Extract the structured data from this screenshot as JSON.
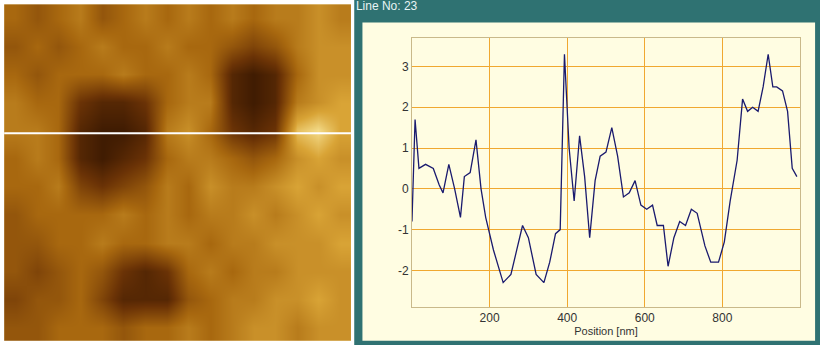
{
  "chart_data": [
    {
      "type": "heatmap",
      "x": [
        31.25,
        93.75,
        156.25,
        218.75,
        281.25,
        343.75,
        406.25,
        468.75,
        531.25,
        593.75,
        656.25,
        718.75,
        781.25,
        843.75,
        906.25,
        968.75
      ],
      "y": [
        2.5,
        7.5,
        12.5,
        17.5,
        22.5,
        27.5,
        32.5,
        37.5,
        42.5,
        47.5,
        52.5,
        57.5
      ],
      "cells": [
        [
          0,
          -0.5,
          0,
          0.5,
          -0.5,
          0,
          0.5,
          0,
          0.5,
          0,
          0.5,
          0,
          0.5,
          0.5,
          1,
          0.5
        ],
        [
          -0.5,
          0,
          -0.5,
          0,
          0.5,
          0,
          0,
          0.5,
          0,
          0,
          -0.5,
          -1,
          -0.5,
          0.5,
          1,
          1
        ],
        [
          0,
          -0.5,
          0,
          0,
          0,
          0.5,
          0,
          0,
          0.5,
          0,
          -2,
          -2.5,
          -2,
          0,
          1,
          1
        ],
        [
          0.5,
          0,
          0,
          -1.5,
          -2,
          -2,
          -1.5,
          0,
          0.5,
          0.5,
          -2,
          -2.5,
          -2,
          0.5,
          1,
          1.5
        ],
        [
          0.5,
          0.5,
          0,
          -2,
          -2.5,
          -2.5,
          -2,
          0.5,
          1,
          0,
          -1.5,
          -2,
          -1.5,
          2,
          2.5,
          1.5
        ],
        [
          0,
          0.5,
          0,
          -2,
          -2.5,
          -2,
          -1.5,
          0,
          0.5,
          0.5,
          0,
          -0.5,
          0,
          1,
          1.5,
          1
        ],
        [
          0,
          0,
          0.5,
          -1,
          -1.5,
          -1,
          -0.5,
          0.5,
          0,
          1,
          0.5,
          0.5,
          1,
          1.5,
          1,
          1.5
        ],
        [
          -0.5,
          0,
          0,
          0,
          0,
          0.5,
          0,
          0.5,
          0,
          0.5,
          0.5,
          1,
          0.5,
          1,
          1.5,
          1
        ],
        [
          -0.5,
          -0.5,
          0,
          0,
          0.5,
          0,
          0,
          0.5,
          0.5,
          0,
          0.5,
          0.5,
          1,
          1,
          1,
          1.5
        ],
        [
          -0.5,
          -1,
          -0.5,
          0,
          -0.5,
          -1.5,
          -2,
          -1.5,
          0,
          0.5,
          0,
          0.5,
          0.5,
          1,
          1,
          1
        ],
        [
          -1,
          -0.5,
          -0.5,
          0,
          -1,
          -2,
          -2,
          -2,
          -0.5,
          0,
          0.5,
          0.5,
          1,
          1,
          1.5,
          1
        ],
        [
          -0.5,
          -0.5,
          0,
          0,
          0,
          -0.5,
          0,
          0,
          0.5,
          0,
          0.5,
          1,
          1,
          0.5,
          1,
          1
        ]
      ],
      "zlim": [
        -3,
        3
      ],
      "xlim": [
        0,
        1000
      ],
      "ylim": [
        60,
        0
      ],
      "scan_line": 23,
      "tick_labels": false
    },
    {
      "type": "line",
      "title": "Line No: 23",
      "x_label": "Position [nm]",
      "x": [
        0,
        8,
        18,
        35,
        55,
        70,
        80,
        95,
        110,
        125,
        135,
        150,
        165,
        178,
        190,
        210,
        235,
        255,
        270,
        285,
        300,
        320,
        340,
        355,
        370,
        382,
        393,
        405,
        418,
        432,
        445,
        458,
        472,
        485,
        500,
        515,
        530,
        545,
        560,
        575,
        590,
        605,
        620,
        632,
        648,
        660,
        675,
        690,
        705,
        720,
        735,
        755,
        770,
        790,
        805,
        820,
        838,
        852,
        865,
        878,
        892,
        905,
        918,
        930,
        940,
        955,
        968,
        980,
        992
      ],
      "values": [
        -0.8,
        1.7,
        0.5,
        0.6,
        0.5,
        0.1,
        -0.1,
        0.6,
        0,
        -0.7,
        0.3,
        0.4,
        1.2,
        0,
        -0.7,
        -1.5,
        -2.3,
        -2.1,
        -1.5,
        -0.9,
        -1.2,
        -2.1,
        -2.3,
        -1.8,
        -1.1,
        -1.0,
        3.3,
        1.0,
        -0.3,
        1.3,
        0.3,
        -1.2,
        0.2,
        0.8,
        0.9,
        1.5,
        0.8,
        -0.2,
        -0.1,
        0.2,
        -0.4,
        -0.5,
        -0.4,
        -0.9,
        -0.9,
        -1.9,
        -1.2,
        -0.8,
        -0.9,
        -0.5,
        -0.6,
        -1.4,
        -1.8,
        -1.8,
        -1.3,
        -0.3,
        0.7,
        2.2,
        1.9,
        2.0,
        1.9,
        2.5,
        3.3,
        2.5,
        2.5,
        2.4,
        1.9,
        0.5,
        0.3
      ],
      "color": "#1a1a6e",
      "xlim": [
        0,
        1000
      ],
      "ylim": [
        -2.9,
        3.7
      ],
      "xticks": [
        200,
        400,
        600,
        800
      ],
      "yticks": [
        -2,
        -1,
        0,
        1,
        2,
        3
      ],
      "grid": true
    }
  ]
}
